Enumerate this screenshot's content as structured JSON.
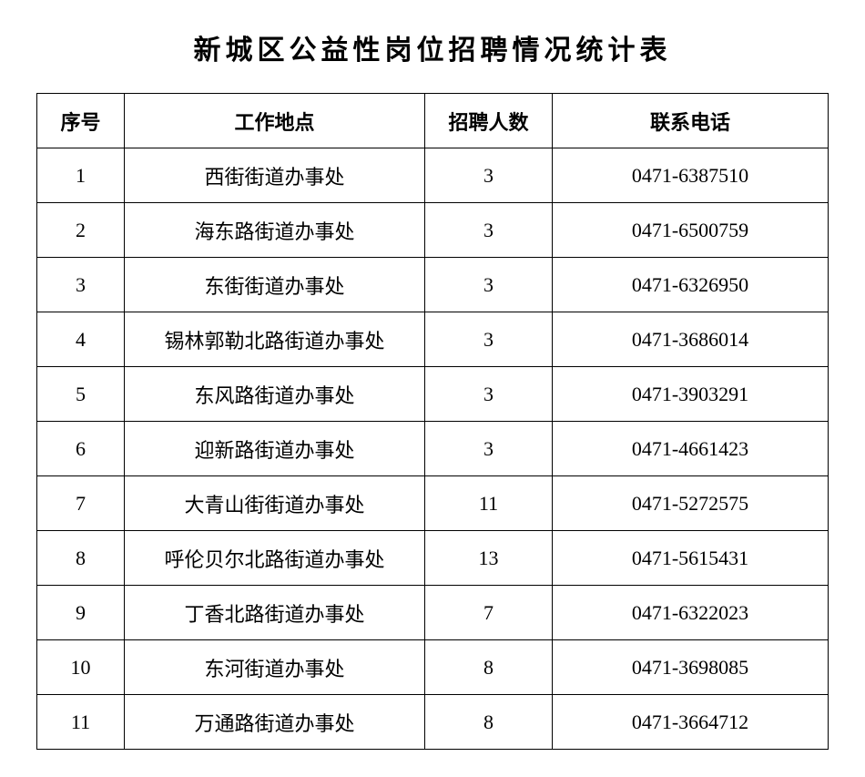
{
  "title": "新城区公益性岗位招聘情况统计表",
  "table": {
    "columns": [
      "序号",
      "工作地点",
      "招聘人数",
      "联系电话"
    ],
    "rows": [
      [
        "1",
        "西街街道办事处",
        "3",
        "0471-6387510"
      ],
      [
        "2",
        "海东路街道办事处",
        "3",
        "0471-6500759"
      ],
      [
        "3",
        "东街街道办事处",
        "3",
        "0471-6326950"
      ],
      [
        "4",
        "锡林郭勒北路街道办事处",
        "3",
        "0471-3686014"
      ],
      [
        "5",
        "东风路街道办事处",
        "3",
        "0471-3903291"
      ],
      [
        "6",
        "迎新路街道办事处",
        "3",
        "0471-4661423"
      ],
      [
        "7",
        "大青山街街道办事处",
        "11",
        "0471-5272575"
      ],
      [
        "8",
        "呼伦贝尔北路街道办事处",
        "13",
        "0471-5615431"
      ],
      [
        "9",
        "丁香北路街道办事处",
        "7",
        "0471-6322023"
      ],
      [
        "10",
        "东河街道办事处",
        "8",
        "0471-3698085"
      ],
      [
        "11",
        "万通路街道办事处",
        "8",
        "0471-3664712"
      ]
    ]
  }
}
